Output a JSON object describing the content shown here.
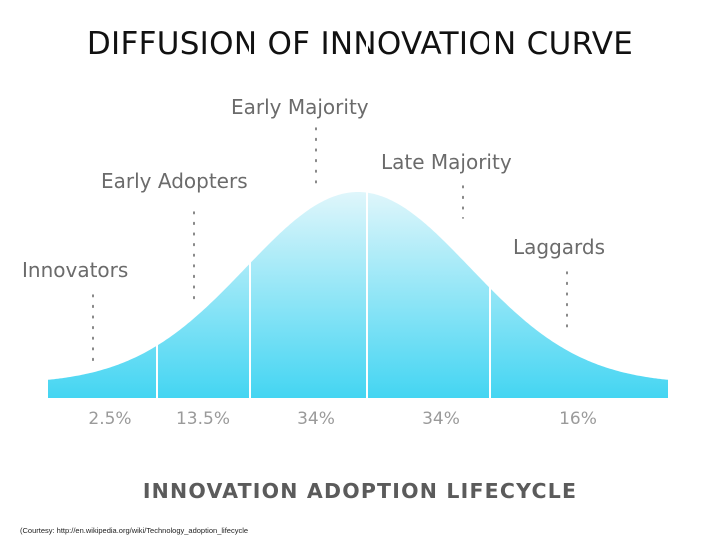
{
  "slide_title": "DIFFUSION OF INNOVATION CURVE",
  "diagram_title": "INNOVATION ADOPTION LIFECYCLE",
  "courtesy": "(Courtesy: http://en.wikipedia.org/wiki/Technology_adoption_lifecycle",
  "colors": {
    "curve_top": "#dff6fb",
    "curve_bottom": "#44d5f2",
    "labels": "#6b6b6b",
    "percent": "#9a9a9a",
    "divider": "#ffffff"
  },
  "segments": [
    {
      "name": "Innovators",
      "percent": "2.5%"
    },
    {
      "name": "Early Adopters",
      "percent": "13.5%"
    },
    {
      "name": "Early Majority",
      "percent": "34%"
    },
    {
      "name": "Late Majority",
      "percent": "34%"
    },
    {
      "name": "Laggards",
      "percent": "16%"
    }
  ]
}
